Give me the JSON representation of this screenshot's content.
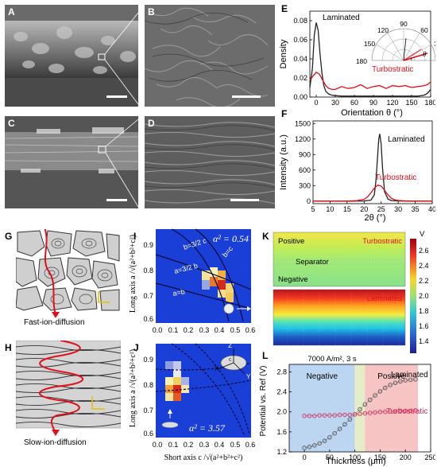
{
  "panels": {
    "A": "A",
    "B": "B",
    "C": "C",
    "D": "D",
    "E": "E",
    "F": "F",
    "G": "G",
    "H": "H",
    "I": "I",
    "J": "J",
    "K": "K",
    "L": "L"
  },
  "schematics": {
    "fast_label": "Fast-ion-diffusion",
    "slow_label": "Slow-ion-diffusion"
  },
  "heatmap_I": {
    "alpha_label": "α² = 0.54",
    "curve_labels": [
      "b=3/2 c",
      "b=c",
      "a=3/2 b",
      "a=b"
    ],
    "ylabel": "Long axis a /√(a²+b²+c²)",
    "y_ticks": [
      "0.9",
      "0.8",
      "0.7",
      "0.6"
    ],
    "x_ticks": [
      "0.0",
      "0.1",
      "0.2",
      "0.3",
      "0.4",
      "0.5",
      "0.6"
    ]
  },
  "heatmap_J": {
    "alpha_label": "α² = 3.57",
    "ylabel": "Long axis a /√(a²+b²+c²)",
    "xlabel": "Short axis c /√(a²+b²+c²)",
    "y_ticks": [
      "0.9",
      "0.8",
      "0.7",
      "0.6"
    ],
    "x_ticks": [
      "0.0",
      "0.1",
      "0.2",
      "0.3",
      "0.4",
      "0.5",
      "0.6"
    ],
    "axis_letters": [
      "Z",
      "X",
      "Y",
      "c",
      "a",
      "b"
    ]
  },
  "sim_K": {
    "positive": "Positive",
    "turbostratic": "Turbostratic",
    "separator": "Separator",
    "negative": "Negative",
    "laminated": "Laminated",
    "unit": "V",
    "ticks": [
      "2.6",
      "2.4",
      "2.2",
      "2.0",
      "1.8",
      "1.6",
      "1.4"
    ]
  },
  "chart_data": [
    {
      "id": "E",
      "type": "line",
      "xlabel": "Orientation θ (°)",
      "ylabel": "Density",
      "xlim": [
        -10,
        180
      ],
      "ylim": [
        0,
        0.09
      ],
      "x_ticks": [
        0,
        30,
        60,
        90,
        120,
        150,
        180
      ],
      "y_ticks": [
        "0.00",
        "0.02",
        "0.04",
        "0.06",
        "0.08"
      ],
      "series": [
        {
          "name": "Laminated",
          "color": "#222222",
          "x": [
            -10,
            -6,
            -3,
            0,
            3,
            6,
            9,
            12,
            15,
            20,
            25,
            30,
            40,
            50,
            60,
            70,
            80,
            90,
            100,
            110,
            120,
            130,
            140,
            150,
            160,
            170,
            175,
            180
          ],
          "y": [
            0.01,
            0.03,
            0.065,
            0.078,
            0.07,
            0.045,
            0.025,
            0.012,
            0.006,
            0.003,
            0.002,
            0.0015,
            0.001,
            0.001,
            0.001,
            0.001,
            0.001,
            0.001,
            0.001,
            0.001,
            0.001,
            0.001,
            0.001,
            0.001,
            0.001,
            0.002,
            0.004,
            0.008
          ]
        },
        {
          "name": "Turbostratic",
          "color": "#e0101a",
          "x": [
            -10,
            -5,
            0,
            5,
            10,
            15,
            20,
            25,
            30,
            40,
            50,
            60,
            70,
            80,
            90,
            100,
            110,
            120,
            130,
            140,
            150,
            160,
            170,
            175,
            180
          ],
          "y": [
            0.018,
            0.022,
            0.026,
            0.024,
            0.018,
            0.012,
            0.009,
            0.008,
            0.008,
            0.011,
            0.009,
            0.01,
            0.013,
            0.009,
            0.011,
            0.012,
            0.009,
            0.012,
            0.011,
            0.012,
            0.01,
            0.011,
            0.012,
            0.013,
            0.016
          ]
        }
      ],
      "polar_inset": {
        "ticks": [
          "90",
          "120",
          "60",
          "150",
          "30",
          "180",
          "0"
        ],
        "symbol": "θ"
      }
    },
    {
      "id": "F",
      "type": "line",
      "xlabel": "2θ (°)",
      "ylabel": "Intensity (a.u.)",
      "xlim": [
        5,
        40
      ],
      "ylim": [
        -50,
        1550
      ],
      "x_ticks": [
        5,
        10,
        15,
        20,
        25,
        30,
        35,
        40
      ],
      "y_ticks": [
        0,
        300,
        600,
        900,
        1200,
        1500
      ],
      "series": [
        {
          "name": "Laminated",
          "color": "#222222",
          "x": [
            5,
            15,
            20,
            22,
            23,
            23.5,
            24,
            24.3,
            24.6,
            25,
            25.4,
            26,
            27,
            28,
            30,
            35,
            40
          ],
          "y": [
            0,
            0,
            2,
            20,
            120,
            420,
            900,
            1200,
            1300,
            1100,
            650,
            180,
            40,
            10,
            2,
            0,
            0
          ]
        },
        {
          "name": "Turbostratic",
          "color": "#e0101a",
          "x": [
            5,
            15,
            18,
            20,
            21,
            22,
            23,
            24,
            25,
            26,
            27,
            28,
            29,
            30,
            32,
            35,
            40
          ],
          "y": [
            0,
            2,
            10,
            35,
            80,
            160,
            250,
            310,
            290,
            210,
            120,
            55,
            25,
            12,
            5,
            2,
            0
          ]
        }
      ]
    },
    {
      "id": "L",
      "type": "scatter",
      "title": "7000 A/m², 3 s",
      "xlabel": "Thickness (μm)",
      "ylabel": "Potential vs. Ref (V)",
      "xlim": [
        -30,
        250
      ],
      "ylim": [
        1.2,
        2.95
      ],
      "x_ticks": [
        0,
        50,
        100,
        150,
        200,
        250
      ],
      "y_ticks": [
        "1.2",
        "1.6",
        "2.0",
        "2.4",
        "2.8"
      ],
      "regions": [
        {
          "label": "Negative",
          "from": -30,
          "to": 100,
          "color": "#bcd6f2"
        },
        {
          "label": "",
          "from": 100,
          "to": 120,
          "color": "#e4ecc8"
        },
        {
          "label": "Positive",
          "from": 120,
          "to": 225,
          "color": "#f7c4c4"
        }
      ],
      "series": [
        {
          "name": "Laminated",
          "color": "#555555",
          "x": [
            0,
            10,
            20,
            30,
            40,
            50,
            60,
            70,
            80,
            90,
            100,
            110,
            120,
            130,
            140,
            150,
            160,
            170,
            180,
            190,
            200,
            210,
            220
          ],
          "y": [
            1.28,
            1.3,
            1.33,
            1.37,
            1.42,
            1.49,
            1.57,
            1.66,
            1.75,
            1.85,
            1.95,
            2.05,
            2.15,
            2.24,
            2.33,
            2.41,
            2.48,
            2.54,
            2.58,
            2.61,
            2.63,
            2.64,
            2.65
          ]
        },
        {
          "name": "Turbostratic",
          "color": "#d03060",
          "x": [
            0,
            10,
            20,
            30,
            40,
            50,
            60,
            70,
            80,
            90,
            100,
            110,
            120,
            130,
            140,
            150,
            160,
            170,
            180,
            190,
            200,
            210,
            220
          ],
          "y": [
            1.92,
            1.92,
            1.92,
            1.93,
            1.93,
            1.93,
            1.93,
            1.94,
            1.94,
            1.94,
            1.95,
            1.96,
            1.97,
            1.98,
            1.99,
            2.0,
            2.0,
            2.01,
            2.01,
            2.02,
            2.02,
            2.02,
            2.03
          ]
        }
      ]
    }
  ]
}
